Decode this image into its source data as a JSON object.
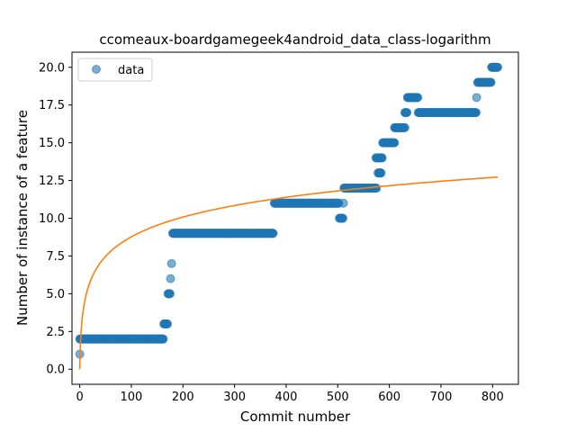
{
  "chart_data": {
    "type": "scatter",
    "title": "ccomeaux-boardgamegeek4android_data_class-logarithm",
    "xlabel": "Commit number",
    "ylabel": "Number of instance of a feature",
    "xlim": [
      -15,
      850
    ],
    "ylim": [
      -1.0,
      21.0
    ],
    "xticks": [
      0,
      100,
      200,
      300,
      400,
      500,
      600,
      700,
      800
    ],
    "yticks": [
      0.0,
      2.5,
      5.0,
      7.5,
      10.0,
      12.5,
      15.0,
      17.5,
      20.0
    ],
    "xtick_labels": [
      "0",
      "100",
      "200",
      "300",
      "400",
      "500",
      "600",
      "700",
      "800"
    ],
    "ytick_labels": [
      "0.0",
      "2.5",
      "5.0",
      "7.5",
      "10.0",
      "12.5",
      "15.0",
      "17.5",
      "20.0"
    ],
    "legend": {
      "position": "upper-left",
      "entries": [
        "data"
      ]
    },
    "grid": false,
    "colors": {
      "data": "#1f77b4",
      "fit": "#ff7f0e"
    },
    "series": [
      {
        "name": "data",
        "kind": "scatter",
        "segments": [
          {
            "x_start": 0,
            "x_end": 0,
            "y": 1
          },
          {
            "x_start": 0,
            "x_end": 162,
            "y": 2
          },
          {
            "x_start": 163,
            "x_end": 170,
            "y": 3
          },
          {
            "x_start": 171,
            "x_end": 175,
            "y": 5
          },
          {
            "x_start": 176,
            "x_end": 176,
            "y": 6
          },
          {
            "x_start": 178,
            "x_end": 178,
            "y": 7
          },
          {
            "x_start": 180,
            "x_end": 375,
            "y": 9
          },
          {
            "x_start": 377,
            "x_end": 502,
            "y": 11
          },
          {
            "x_start": 503,
            "x_end": 510,
            "y": 10
          },
          {
            "x_start": 511,
            "x_end": 511,
            "y": 11
          },
          {
            "x_start": 512,
            "x_end": 575,
            "y": 12
          },
          {
            "x_start": 574,
            "x_end": 578,
            "y": 14
          },
          {
            "x_start": 578,
            "x_end": 584,
            "y": 13
          },
          {
            "x_start": 580,
            "x_end": 586,
            "y": 14
          },
          {
            "x_start": 587,
            "x_end": 610,
            "y": 15
          },
          {
            "x_start": 610,
            "x_end": 630,
            "y": 16
          },
          {
            "x_start": 630,
            "x_end": 634,
            "y": 17
          },
          {
            "x_start": 635,
            "x_end": 655,
            "y": 18
          },
          {
            "x_start": 656,
            "x_end": 768,
            "y": 17
          },
          {
            "x_start": 769,
            "x_end": 769,
            "y": 18
          },
          {
            "x_start": 771,
            "x_end": 797,
            "y": 19
          },
          {
            "x_start": 798,
            "x_end": 810,
            "y": 20
          }
        ]
      },
      {
        "name": "",
        "kind": "line",
        "function": "y = a + b*ln(x+1)",
        "a": 0.0,
        "b": 1.9,
        "x_range": [
          0,
          810
        ]
      }
    ]
  }
}
